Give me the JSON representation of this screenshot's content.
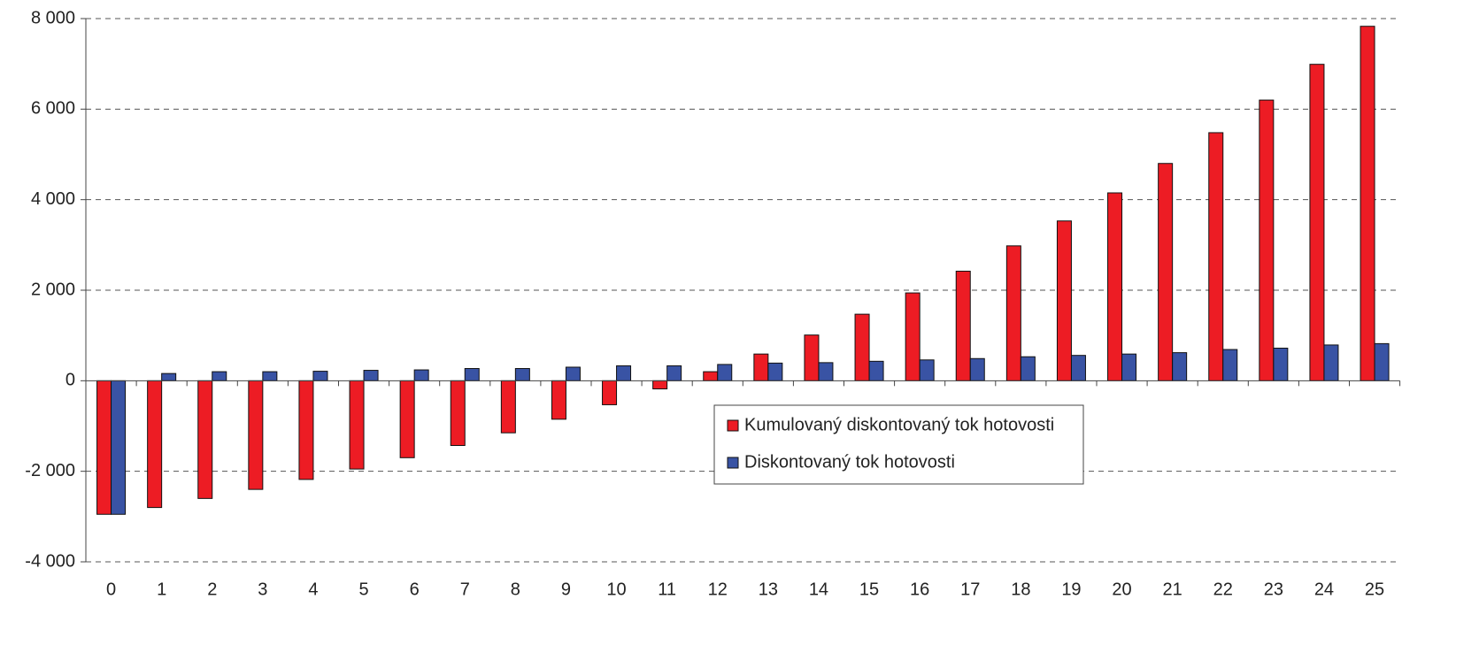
{
  "chart_data": {
    "type": "bar",
    "categories": [
      "0",
      "1",
      "2",
      "3",
      "4",
      "5",
      "6",
      "7",
      "8",
      "9",
      "10",
      "11",
      "12",
      "13",
      "14",
      "15",
      "16",
      "17",
      "18",
      "19",
      "20",
      "21",
      "22",
      "23",
      "24",
      "25"
    ],
    "series": [
      {
        "name": "Kumulovaný diskontovaný tok hotovosti",
        "color": "#ed1c24",
        "values": [
          -2950,
          -2800,
          -2600,
          -2400,
          -2180,
          -1950,
          -1700,
          -1430,
          -1150,
          -850,
          -530,
          -180,
          200,
          590,
          1010,
          1470,
          1940,
          2420,
          2980,
          3530,
          4150,
          4800,
          5480,
          6200,
          6990,
          7830
        ]
      },
      {
        "name": "Diskontovaný tok hotovosti",
        "color": "#3953a4",
        "values": [
          -2950,
          160,
          200,
          200,
          210,
          230,
          240,
          270,
          270,
          300,
          330,
          330,
          360,
          390,
          400,
          430,
          460,
          490,
          530,
          560,
          590,
          620,
          690,
          720,
          790,
          820
        ]
      }
    ],
    "ylim": [
      -4000,
      8000
    ],
    "yticks": [
      {
        "value": -4000,
        "label": "-4 000"
      },
      {
        "value": -2000,
        "label": "-2 000"
      },
      0,
      {
        "value": 2000,
        "label": "2 000"
      },
      {
        "value": 4000,
        "label": "4 000"
      },
      {
        "value": 6000,
        "label": "6 000"
      },
      {
        "value": 8000,
        "label": "8 000"
      }
    ],
    "grid": true
  }
}
